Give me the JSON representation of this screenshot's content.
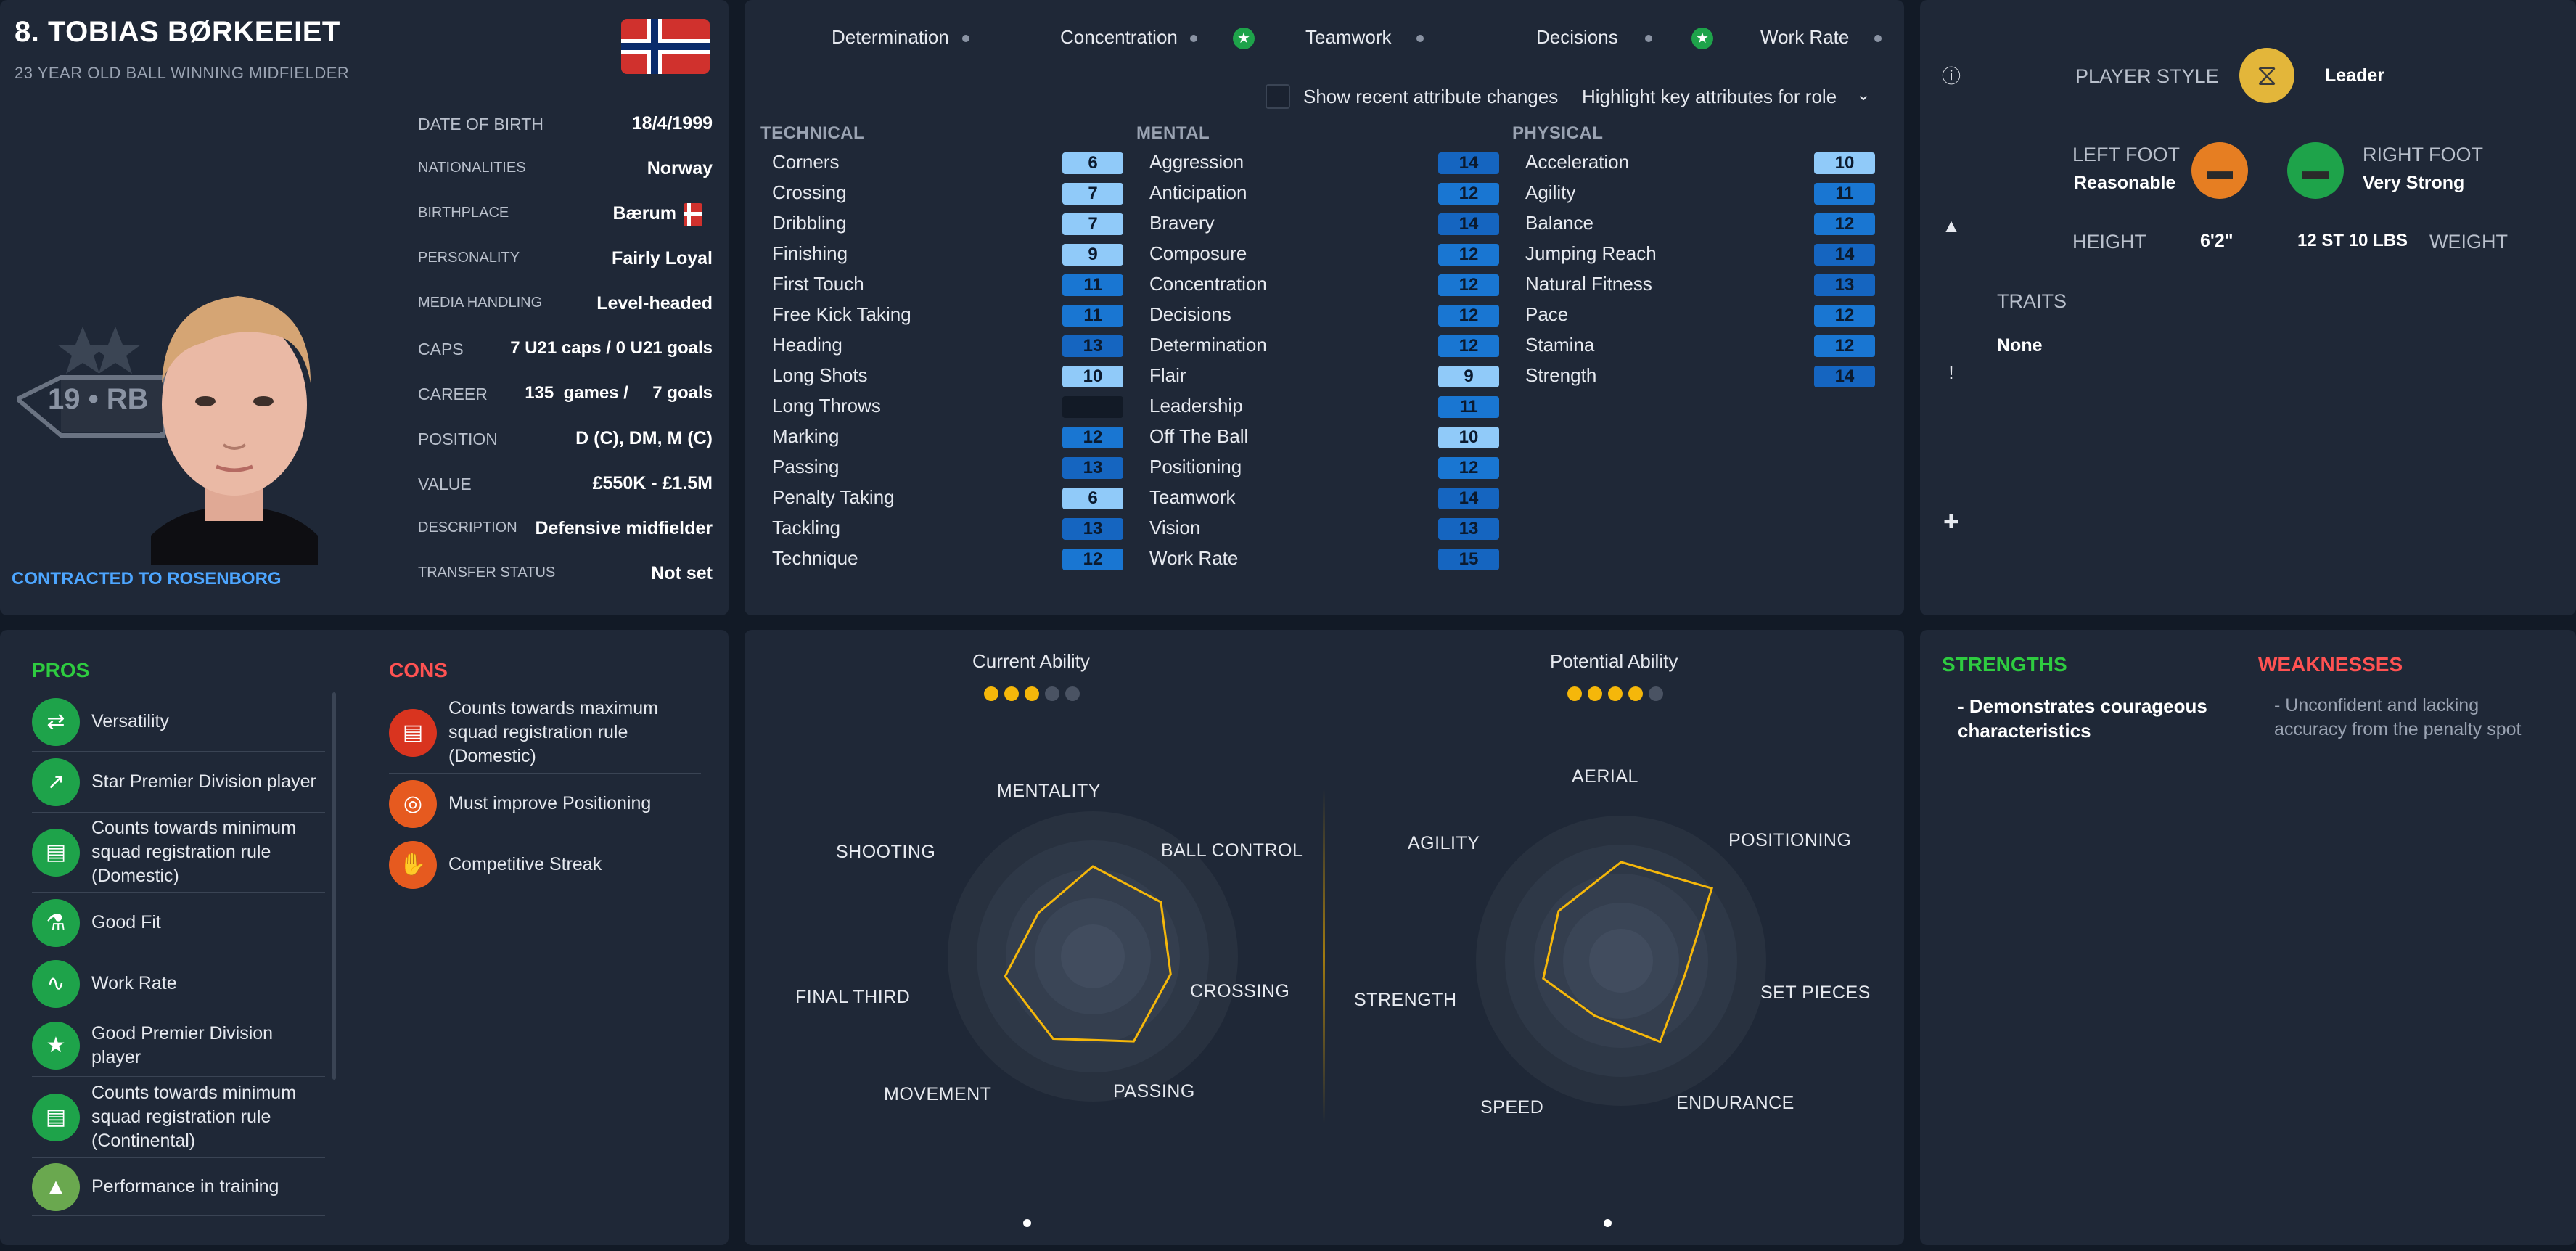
{
  "player": {
    "name": "8. TOBIAS BØRKEEIET",
    "subtitle": "23 YEAR OLD BALL WINNING MIDFIELDER",
    "contract": "CONTRACTED TO ROSENBORG",
    "club_badge_text": "19 • RB",
    "info": [
      {
        "label": "DATE OF BIRTH",
        "value": "18/4/1999"
      },
      {
        "label": "NATIONALITIES",
        "value": "Norway"
      },
      {
        "label": "BIRTHPLACE",
        "value": "Bærum"
      },
      {
        "label": "PERSONALITY",
        "value": "Fairly Loyal"
      },
      {
        "label": "MEDIA HANDLING",
        "value": "Level-headed"
      },
      {
        "label": "CAPS",
        "value": "7 U21 caps / 0 U21 goals"
      },
      {
        "label": "CAREER",
        "value": "135  games /     7 goals"
      },
      {
        "label": "POSITION",
        "value": "D (C), DM, M (C)"
      },
      {
        "label": "VALUE",
        "value": "£550K - £1.5M"
      },
      {
        "label": "DESCRIPTION",
        "value": "Defensive midfielder"
      },
      {
        "label": "TRANSFER STATUS",
        "value": "Not set"
      }
    ]
  },
  "key_attributes": [
    {
      "name": "Determination",
      "marker": "dot"
    },
    {
      "name": "Concentration",
      "marker": "dot"
    },
    {
      "name": "Teamwork",
      "marker": "dot"
    },
    {
      "name": "Decisions",
      "marker": "dot"
    },
    {
      "name": "Work Rate",
      "marker": "dot"
    }
  ],
  "controls": {
    "show_recent_label": "Show recent attribute changes",
    "highlight_dropdown": "Highlight key attributes for role"
  },
  "attributes": {
    "technical": {
      "header": "TECHNICAL",
      "items": [
        {
          "name": "Corners",
          "value": "6"
        },
        {
          "name": "Crossing",
          "value": "7"
        },
        {
          "name": "Dribbling",
          "value": "7"
        },
        {
          "name": "Finishing",
          "value": "9"
        },
        {
          "name": "First Touch",
          "value": "11"
        },
        {
          "name": "Free Kick Taking",
          "value": "11"
        },
        {
          "name": "Heading",
          "value": "13"
        },
        {
          "name": "Long Shots",
          "value": "10"
        },
        {
          "name": "Long Throws",
          "value": ""
        },
        {
          "name": "Marking",
          "value": "12"
        },
        {
          "name": "Passing",
          "value": "13"
        },
        {
          "name": "Penalty Taking",
          "value": "6"
        },
        {
          "name": "Tackling",
          "value": "13"
        },
        {
          "name": "Technique",
          "value": "12"
        }
      ]
    },
    "mental": {
      "header": "MENTAL",
      "items": [
        {
          "name": "Aggression",
          "value": "14"
        },
        {
          "name": "Anticipation",
          "value": "12"
        },
        {
          "name": "Bravery",
          "value": "14"
        },
        {
          "name": "Composure",
          "value": "12"
        },
        {
          "name": "Concentration",
          "value": "12"
        },
        {
          "name": "Decisions",
          "value": "12"
        },
        {
          "name": "Determination",
          "value": "12"
        },
        {
          "name": "Flair",
          "value": "9"
        },
        {
          "name": "Leadership",
          "value": "11"
        },
        {
          "name": "Off The Ball",
          "value": "10"
        },
        {
          "name": "Positioning",
          "value": "12"
        },
        {
          "name": "Teamwork",
          "value": "14"
        },
        {
          "name": "Vision",
          "value": "13"
        },
        {
          "name": "Work Rate",
          "value": "15"
        }
      ]
    },
    "physical": {
      "header": "PHYSICAL",
      "items": [
        {
          "name": "Acceleration",
          "value": "10"
        },
        {
          "name": "Agility",
          "value": "11"
        },
        {
          "name": "Balance",
          "value": "12"
        },
        {
          "name": "Jumping Reach",
          "value": "14"
        },
        {
          "name": "Natural Fitness",
          "value": "13"
        },
        {
          "name": "Pace",
          "value": "12"
        },
        {
          "name": "Stamina",
          "value": "12"
        },
        {
          "name": "Strength",
          "value": "14"
        }
      ]
    }
  },
  "profile": {
    "player_style_label": "PLAYER STYLE",
    "player_style_value": "Leader",
    "left_foot_label": "LEFT FOOT",
    "left_foot_value": "Reasonable",
    "right_foot_label": "RIGHT FOOT",
    "right_foot_value": "Very Strong",
    "height_label": "HEIGHT",
    "height_value": "6'2\"",
    "weight_value": "12 ST 10 LBS",
    "weight_label": "WEIGHT",
    "traits_label": "TRAITS",
    "traits_value": "None"
  },
  "pros": {
    "header": "PROS",
    "items": [
      {
        "text": "Versatility",
        "icon": "versatility-icon"
      },
      {
        "text": "Star Premier Division player",
        "icon": "trend-up-icon"
      },
      {
        "text": "Counts towards minimum squad registration rule (Domestic)",
        "icon": "registration-icon"
      },
      {
        "text": "Good Fit",
        "icon": "flask-icon"
      },
      {
        "text": "Work Rate",
        "icon": "heartbeat-icon"
      },
      {
        "text": "Good Premier Division player",
        "icon": "star-icon"
      },
      {
        "text": "Counts towards minimum squad registration rule (Continental)",
        "icon": "registration-icon"
      },
      {
        "text": "Performance in training",
        "icon": "training-cones-icon"
      }
    ]
  },
  "cons": {
    "header": "CONS",
    "items": [
      {
        "text": "Counts towards maximum squad registration rule (Domestic)",
        "icon": "registration-icon"
      },
      {
        "text": "Must improve Positioning",
        "icon": "positioning-icon"
      },
      {
        "text": "Competitive Streak",
        "icon": "competitive-icon"
      }
    ]
  },
  "ability": {
    "current_label": "Current Ability",
    "current_stars": 3,
    "potential_label": "Potential Ability",
    "potential_stars": 4,
    "max_stars": 5,
    "star_color": "#f5b70a"
  },
  "radar_left": {
    "labels": [
      "MENTALITY",
      "BALL CONTROL",
      "CROSSING",
      "PASSING",
      "MOVEMENT",
      "FINAL THIRD",
      "SHOOTING"
    ],
    "values": [
      0.62,
      0.6,
      0.55,
      0.65,
      0.63,
      0.62,
      0.48
    ]
  },
  "radar_right": {
    "labels": [
      "AERIAL",
      "POSITIONING",
      "SET PIECES",
      "ENDURANCE",
      "SPEED",
      "STRENGTH",
      "AGILITY"
    ],
    "values": [
      0.68,
      0.8,
      0.45,
      0.62,
      0.42,
      0.55,
      0.55
    ]
  },
  "strengths": {
    "header": "STRENGTHS",
    "items": [
      "- Demonstrates courageous characteristics"
    ]
  },
  "weaknesses": {
    "header": "WEAKNESSES",
    "items": [
      "- Unconfident and lacking accuracy from the penalty spot"
    ]
  },
  "colors": {
    "accent_blue": "#4da6ff",
    "pros_green": "#2ecc40",
    "cons_red": "#ff5252",
    "radar_line": "#f5b70a"
  }
}
